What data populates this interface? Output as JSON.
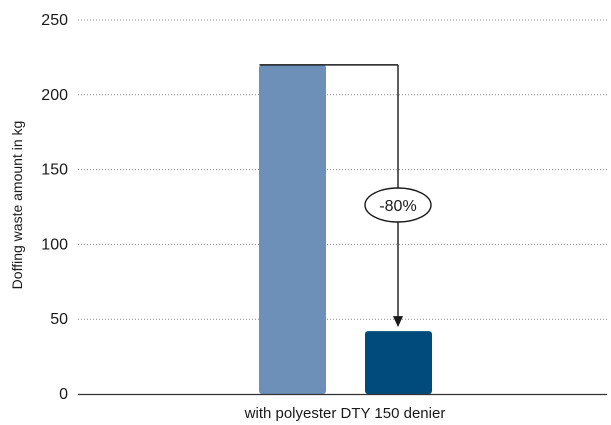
{
  "chart_data": {
    "type": "bar",
    "categories": [
      "with polyester DTY 150 denier"
    ],
    "series": [
      {
        "values": [
          220
        ]
      },
      {
        "values": [
          42
        ]
      }
    ],
    "xlabel": "with polyester DTY 150 denier",
    "ylabel": "Doffing waste amount in kg",
    "ylim": [
      0,
      250
    ],
    "yticks": [
      "0",
      "50",
      "100",
      "150",
      "200",
      "250"
    ],
    "grid": true,
    "annotation": "-80%",
    "colors": {
      "series_1": "#6c90b8",
      "series_2": "#004b7c",
      "arrow": "#1a1a1a",
      "grid": "#888888",
      "axis": "#333333"
    }
  }
}
